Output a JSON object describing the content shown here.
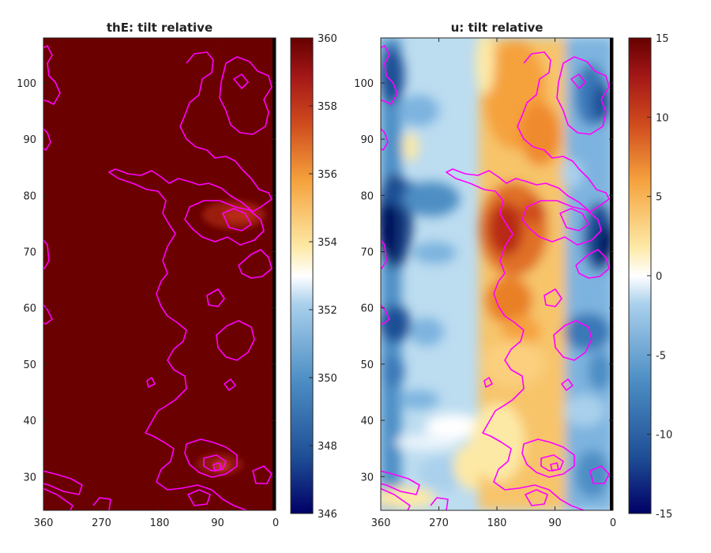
{
  "figure": {
    "panels": [
      {
        "title": "thE: tilt relative"
      },
      {
        "title": "u: tilt relative"
      }
    ]
  },
  "colors": {
    "contour": "#ff00ff",
    "saturated_field": "#6b0000",
    "colormap": [
      "#000066",
      "#1f4f96",
      "#4d8ec4",
      "#a9d0ec",
      "#ffffff",
      "#fde9a6",
      "#f5a23d",
      "#cf4a1d",
      "#a31717",
      "#660000"
    ]
  },
  "chart_data": [
    {
      "type": "heatmap",
      "title": "thE: tilt relative",
      "xlabel": "",
      "ylabel": "",
      "xlim": [
        360,
        0
      ],
      "ylim": [
        24,
        108
      ],
      "x_ticks": [
        "360",
        "270",
        "180",
        "90",
        "0"
      ],
      "y_ticks": [
        "30",
        "40",
        "50",
        "60",
        "70",
        "80",
        "90",
        "100"
      ],
      "colorbar": {
        "range": [
          346,
          360
        ],
        "ticks": [
          "346",
          "348",
          "350",
          "352",
          "354",
          "356",
          "358",
          "360"
        ]
      },
      "field_note": "values saturated at upper limit across panel",
      "contour_color": "magenta"
    },
    {
      "type": "heatmap",
      "title": "u: tilt relative",
      "xlabel": "",
      "ylabel": "",
      "xlim": [
        360,
        0
      ],
      "ylim": [
        24,
        108
      ],
      "x_ticks": [
        "360",
        "270",
        "180",
        "90",
        "0"
      ],
      "y_ticks": [
        "30",
        "40",
        "50",
        "60",
        "70",
        "80",
        "90",
        "100"
      ],
      "colorbar": {
        "range": [
          -15,
          15
        ],
        "ticks": [
          "-15",
          "-10",
          "-5",
          "0",
          "5",
          "10",
          "15"
        ]
      },
      "bands": [
        {
          "x_range": [
            360,
            300
          ],
          "mean_value": -9
        },
        {
          "x_range": [
            300,
            200
          ],
          "mean_value": -2
        },
        {
          "x_range": [
            200,
            80
          ],
          "mean_value": 6
        },
        {
          "x_range": [
            80,
            0
          ],
          "mean_value": -8
        }
      ],
      "contour_color": "magenta"
    }
  ]
}
